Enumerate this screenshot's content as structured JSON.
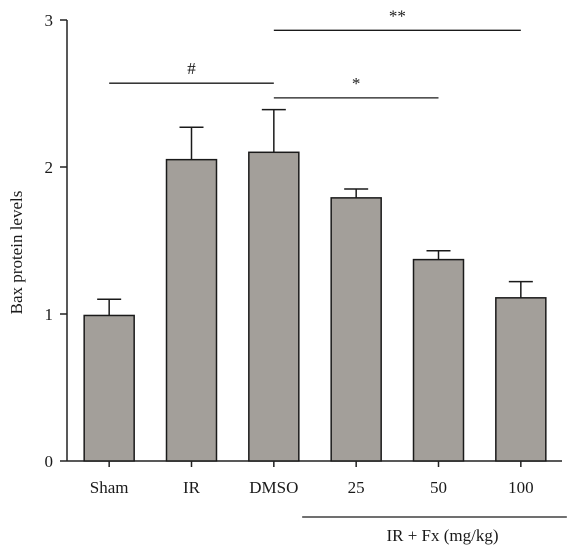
{
  "chart_data": {
    "type": "bar",
    "categories": [
      "Sham",
      "IR",
      "DMSO",
      "25",
      "50",
      "100"
    ],
    "values": [
      0.99,
      2.05,
      2.1,
      1.79,
      1.37,
      1.11
    ],
    "errors": [
      0.11,
      0.22,
      0.29,
      0.06,
      0.06,
      0.11
    ],
    "ylabel": "Bax protein levels",
    "xlabel": "",
    "ylim": [
      0,
      3
    ],
    "yticks": [
      0,
      1,
      2,
      3
    ],
    "bar_color": "#a39f9a",
    "group_label": "IR + Fx (mg/kg)",
    "group_categories": [
      "25",
      "50",
      "100"
    ],
    "significance": [
      {
        "label": "#",
        "from": "Sham",
        "to": "DMSO",
        "y": 2.57
      },
      {
        "label": "**",
        "from": "DMSO",
        "to": "100",
        "y": 2.93
      },
      {
        "label": "*",
        "from": "DMSO",
        "to": "50",
        "y": 2.47
      }
    ]
  }
}
